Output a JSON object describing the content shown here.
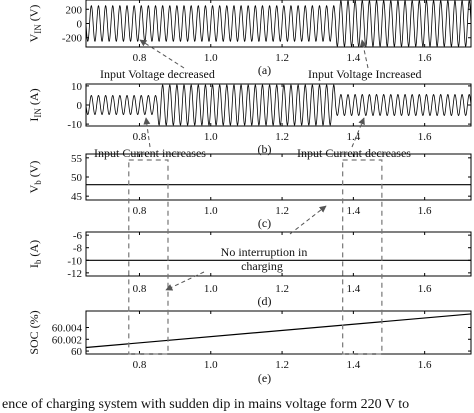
{
  "chart_data": [
    {
      "id": "a",
      "type": "line",
      "panel_label": "(a)",
      "ylabel": "V_IN (V)",
      "ylabel_main": "V",
      "ylabel_sub": "IN",
      "ylabel_unit": "(V)",
      "xlim": [
        0.65,
        1.73
      ],
      "ylim": [
        -330,
        330
      ],
      "xticks": [
        "0.8",
        "1.0",
        "1.2",
        "1.4",
        "1.6"
      ],
      "yticks": [
        "200",
        "0",
        "-200"
      ],
      "x_range": [
        0.65,
        1.73
      ],
      "segments": [
        {
          "x_from": 0.65,
          "x_to": 1.35,
          "amplitude": 250
        },
        {
          "x_from": 1.35,
          "x_to": 1.73,
          "amplitude": 320
        }
      ],
      "cycles_per_unit": 50,
      "annotations": [
        {
          "text": "Input Voltage decreased",
          "points_to_x": 0.82
        },
        {
          "text": "Input Voltage Increased",
          "points_to_x": 1.41
        }
      ]
    },
    {
      "id": "b",
      "type": "line",
      "panel_label": "(b)",
      "ylabel": "I_IN (A)",
      "ylabel_main": "I",
      "ylabel_sub": "IN",
      "ylabel_unit": "(A)",
      "xlim": [
        0.65,
        1.73
      ],
      "ylim": [
        -11,
        11
      ],
      "xticks": [
        "0.8",
        "1.0",
        "1.2",
        "1.4",
        "1.6"
      ],
      "yticks": [
        "10",
        "0",
        "-10"
      ],
      "segments": [
        {
          "x_from": 0.65,
          "x_to": 0.85,
          "amplitude": 5
        },
        {
          "x_from": 0.85,
          "x_to": 1.35,
          "amplitude": 10.5
        },
        {
          "x_from": 1.35,
          "x_to": 1.73,
          "amplitude": 5.5
        }
      ],
      "cycles_per_unit": 50,
      "annotations": [
        {
          "text": "Input Current increases",
          "points_to_x": 0.82
        },
        {
          "text": "Input Current decreases",
          "points_to_x": 1.41
        }
      ]
    },
    {
      "id": "c",
      "type": "line",
      "panel_label": "(c)",
      "ylabel": "V_b (V)",
      "ylabel_main": "V",
      "ylabel_sub": "b",
      "ylabel_unit": "(V)",
      "xlim": [
        0.65,
        1.73
      ],
      "ylim": [
        44,
        56
      ],
      "xticks": [
        "0.8",
        "1.0",
        "1.2",
        "1.4",
        "1.6"
      ],
      "yticks": [
        "55",
        "50",
        "45"
      ],
      "x": [
        0.65,
        1.73
      ],
      "y": [
        48,
        48
      ]
    },
    {
      "id": "d",
      "type": "line",
      "panel_label": "(d)",
      "ylabel": "I_b (A)",
      "ylabel_main": "I",
      "ylabel_sub": "b",
      "ylabel_unit": "(A)",
      "xlim": [
        0.65,
        1.73
      ],
      "ylim": [
        -12.5,
        -5.5
      ],
      "xticks": [
        "0.8",
        "1.0",
        "1.2",
        "1.4",
        "1.6"
      ],
      "yticks": [
        "-6",
        "-8",
        "-10",
        "-12"
      ],
      "x": [
        0.65,
        1.73
      ],
      "y": [
        -10,
        -10
      ],
      "annotations": [
        {
          "text": "No interruption in charging",
          "points_to_x": 0.8
        }
      ]
    },
    {
      "id": "e",
      "type": "line",
      "panel_label": "(e)",
      "ylabel": "SOC (%)",
      "xlim": [
        0.65,
        1.73
      ],
      "ylim": [
        59.9995,
        60.0068
      ],
      "xticks": [
        "0.8",
        "1.0",
        "1.2",
        "1.4",
        "1.6"
      ],
      "yticks": [
        "60.004",
        "60.002",
        "60"
      ],
      "x": [
        0.65,
        1.73
      ],
      "y": [
        60.0006,
        60.0063
      ]
    }
  ],
  "highlight_boxes_x": [
    [
      0.77,
      0.88
    ],
    [
      1.37,
      1.48
    ]
  ],
  "annotation_texts": {
    "a_left": "Input Voltage decreased",
    "a_right": "Input Voltage Increased",
    "b_left": "Input Current increases",
    "b_right": "Input Current decreases",
    "d_line1": "No interruption in",
    "d_line2": "charging"
  },
  "caption": "ence of charging system with sudden dip in mains voltage form 220 V to"
}
